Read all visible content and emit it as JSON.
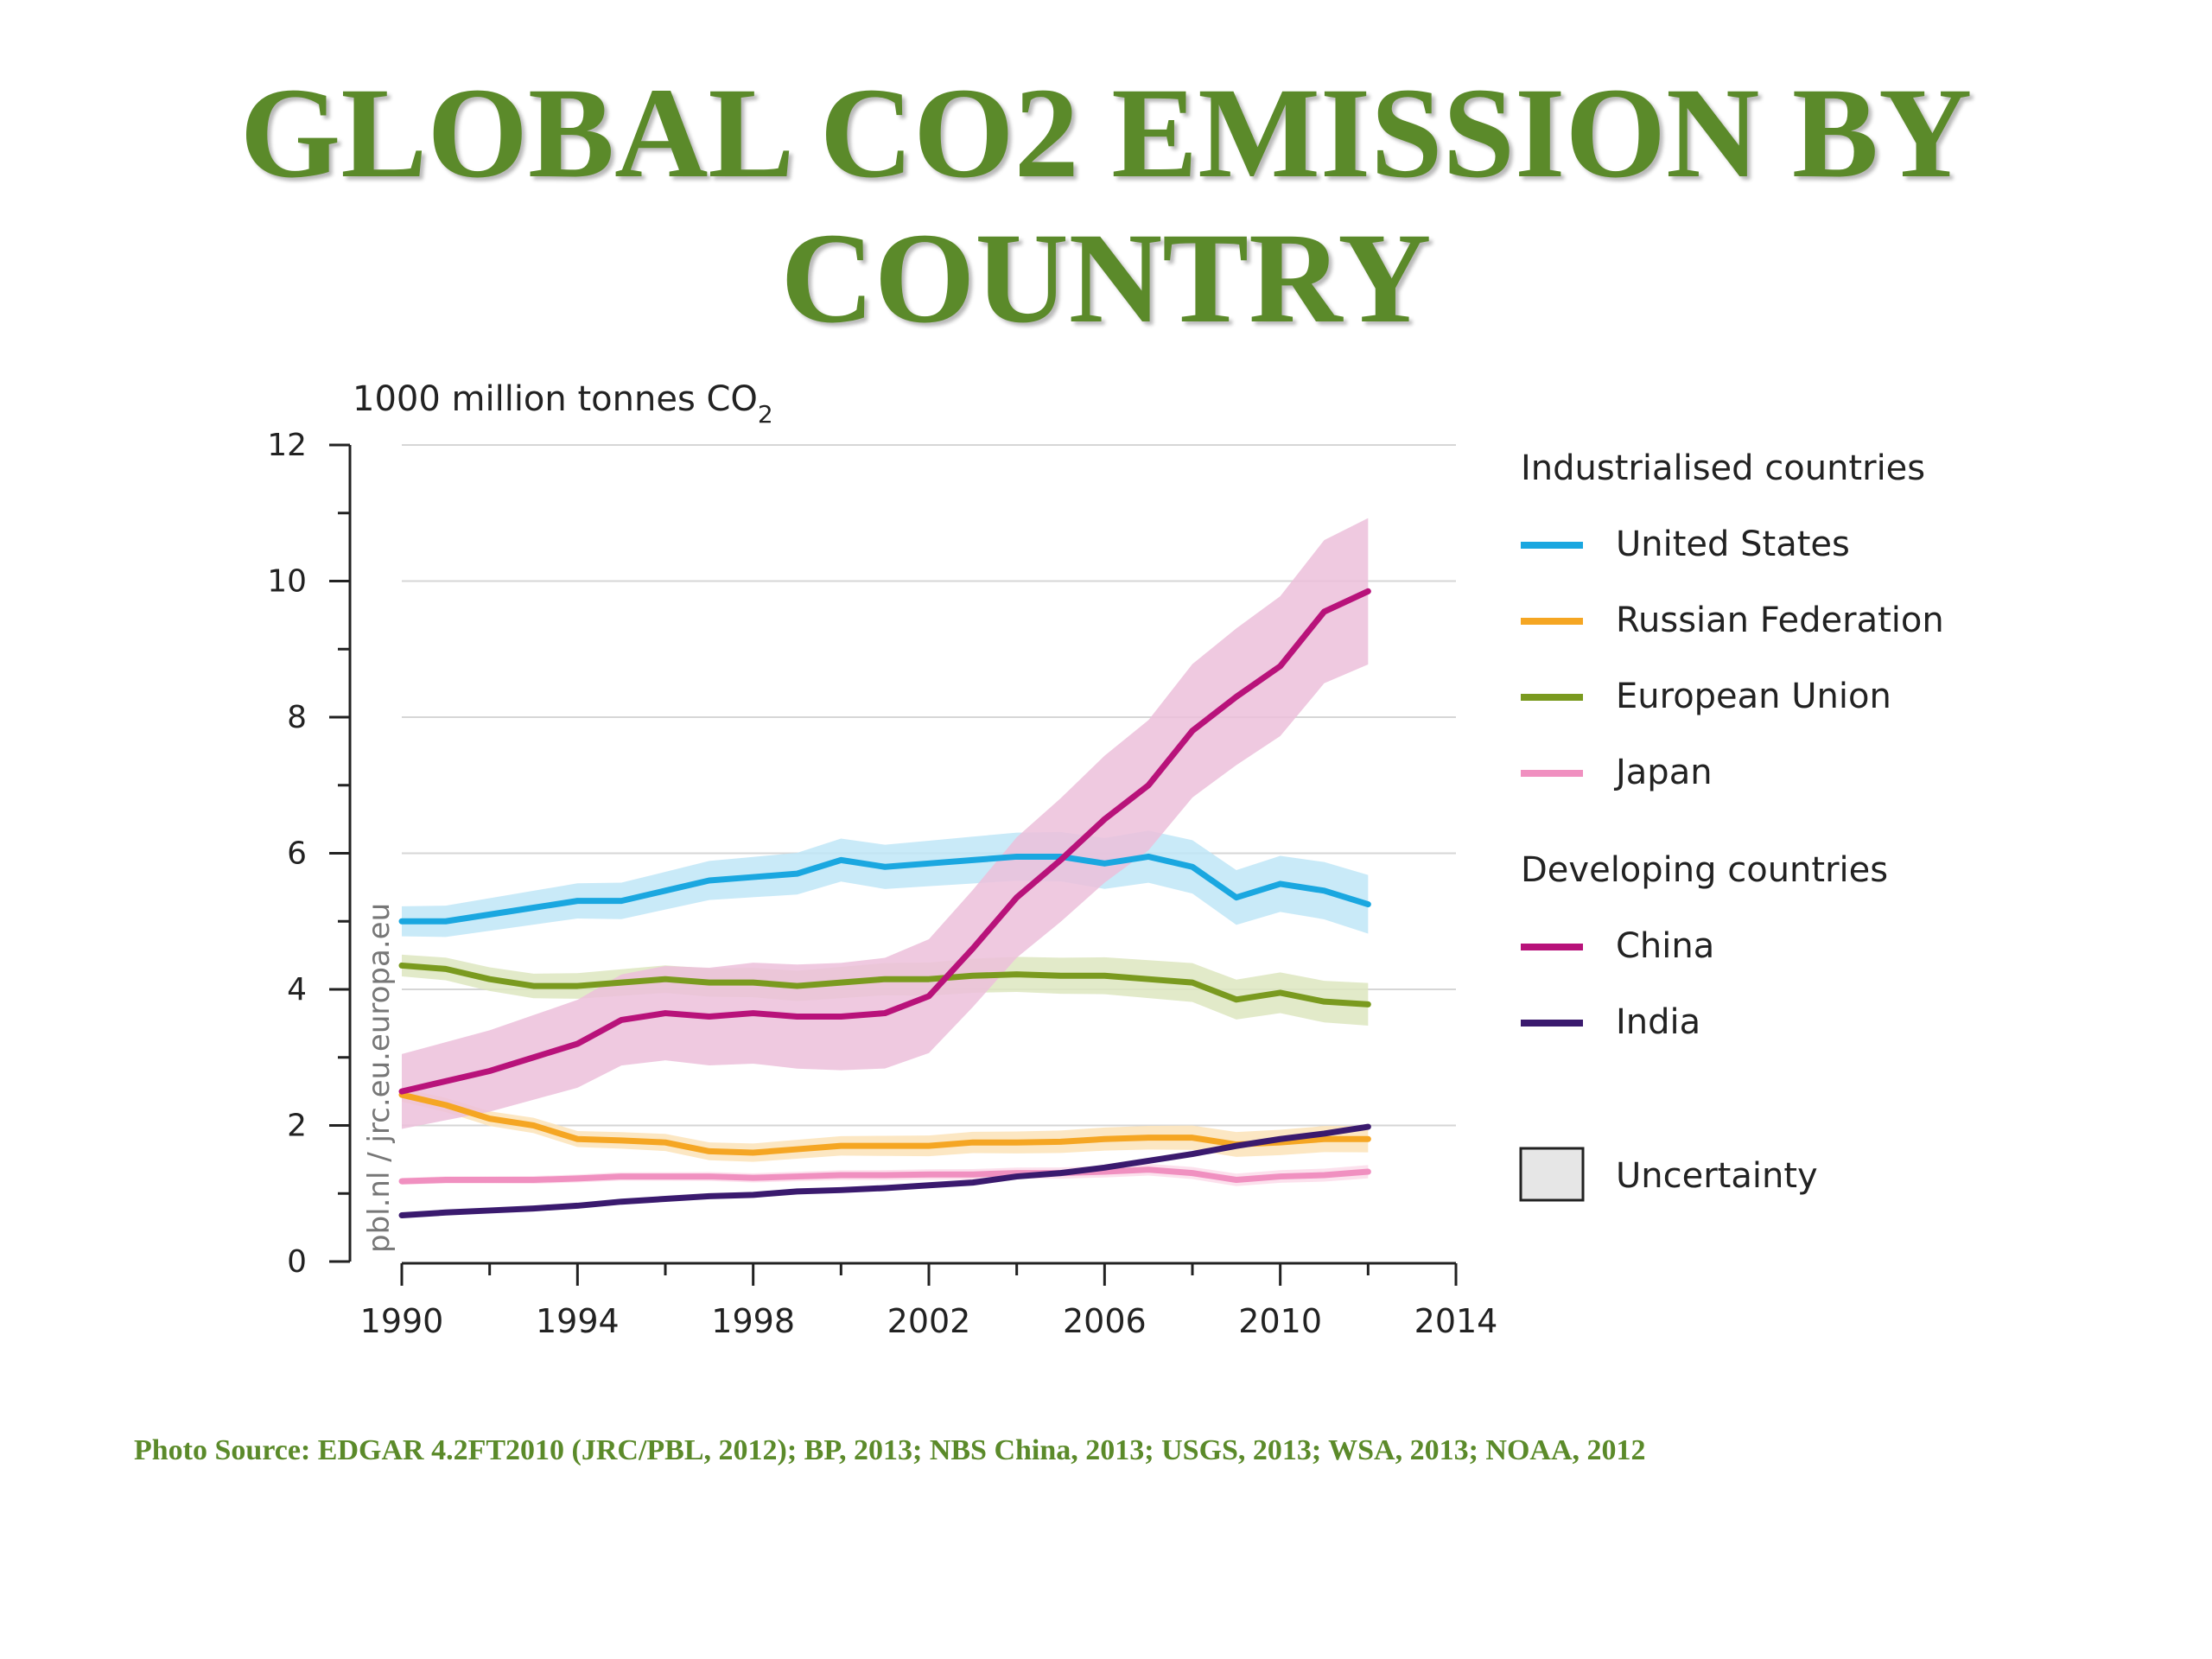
{
  "page": {
    "title_line1": "GLOBAL CO2 EMISSION BY",
    "title_line2": "COUNTRY",
    "source": "Photo Source: EDGAR 4.2FT2010 (JRC/PBL, 2012); BP, 2013; NBS China, 2013; USGS, 2013; WSA, 2013; NOAA, 2012"
  },
  "chart_data": {
    "type": "line",
    "ylabel": "1000 million tonnes CO",
    "ylabel_subscript": "2",
    "watermark": "pbl.nl / jrc.eu.europa.eu",
    "xlim": [
      1990,
      2014
    ],
    "ylim": [
      0,
      12
    ],
    "xticks": [
      1990,
      1994,
      1998,
      2002,
      2006,
      2010,
      2014
    ],
    "yticks": [
      0,
      2,
      4,
      6,
      8,
      10,
      12
    ],
    "grid": true,
    "legend_position": "right",
    "legend_groups": [
      {
        "title": "Industrialised countries",
        "series": [
          "United States",
          "Russian Federation",
          "European Union",
          "Japan"
        ]
      },
      {
        "title": "Developing countries",
        "series": [
          "China",
          "India"
        ]
      }
    ],
    "uncertainty_label": "Uncertainty",
    "x": [
      1990,
      1991,
      1992,
      1993,
      1994,
      1995,
      1996,
      1997,
      1998,
      1999,
      2000,
      2001,
      2002,
      2003,
      2004,
      2005,
      2006,
      2007,
      2008,
      2009,
      2010,
      2011,
      2012
    ],
    "series": [
      {
        "name": "United States",
        "color": "#1aa7e0",
        "band_color": "#bfe6f7",
        "uncertainty": 0.22,
        "values": [
          5.0,
          5.0,
          5.1,
          5.2,
          5.3,
          5.3,
          5.45,
          5.6,
          5.65,
          5.7,
          5.9,
          5.8,
          5.85,
          5.9,
          5.95,
          5.95,
          5.85,
          5.95,
          5.8,
          5.35,
          5.55,
          5.45,
          5.25
        ]
      },
      {
        "name": "Russian Federation",
        "color": "#f5a623",
        "band_color": "#fbe3b8",
        "uncertainty": 0.1,
        "values": [
          2.45,
          2.3,
          2.1,
          2.0,
          1.8,
          1.78,
          1.75,
          1.62,
          1.6,
          1.65,
          1.7,
          1.7,
          1.7,
          1.75,
          1.75,
          1.76,
          1.8,
          1.82,
          1.82,
          1.72,
          1.75,
          1.8,
          1.8
        ]
      },
      {
        "name": "European Union",
        "color": "#7a9a1f",
        "band_color": "#dde6c0",
        "uncertainty": 0.16,
        "values": [
          4.35,
          4.3,
          4.15,
          4.05,
          4.05,
          4.1,
          4.15,
          4.1,
          4.1,
          4.05,
          4.1,
          4.15,
          4.15,
          4.2,
          4.22,
          4.2,
          4.2,
          4.15,
          4.1,
          3.85,
          3.95,
          3.82,
          3.78
        ]
      },
      {
        "name": "Japan",
        "color": "#f090c0",
        "band_color": "#fbdcea",
        "uncertainty": 0.05,
        "values": [
          1.18,
          1.2,
          1.2,
          1.2,
          1.22,
          1.25,
          1.25,
          1.25,
          1.23,
          1.25,
          1.27,
          1.27,
          1.28,
          1.28,
          1.3,
          1.3,
          1.32,
          1.35,
          1.3,
          1.2,
          1.25,
          1.27,
          1.32
        ]
      },
      {
        "name": "China",
        "color": "#b8127a",
        "band_color": "#ecc0db",
        "uncertainty": 0.55,
        "values": [
          2.5,
          2.65,
          2.8,
          3.0,
          3.2,
          3.55,
          3.65,
          3.6,
          3.65,
          3.6,
          3.6,
          3.65,
          3.9,
          4.6,
          5.35,
          5.9,
          6.5,
          7.0,
          7.8,
          8.3,
          8.75,
          9.55,
          9.85
        ]
      },
      {
        "name": "India",
        "color": "#3a1a6e",
        "band_color": "#d5cce3",
        "uncertainty": 0.0,
        "values": [
          0.68,
          0.72,
          0.75,
          0.78,
          0.82,
          0.88,
          0.92,
          0.96,
          0.98,
          1.03,
          1.05,
          1.08,
          1.12,
          1.16,
          1.25,
          1.3,
          1.38,
          1.48,
          1.58,
          1.7,
          1.8,
          1.88,
          1.98
        ]
      }
    ]
  }
}
